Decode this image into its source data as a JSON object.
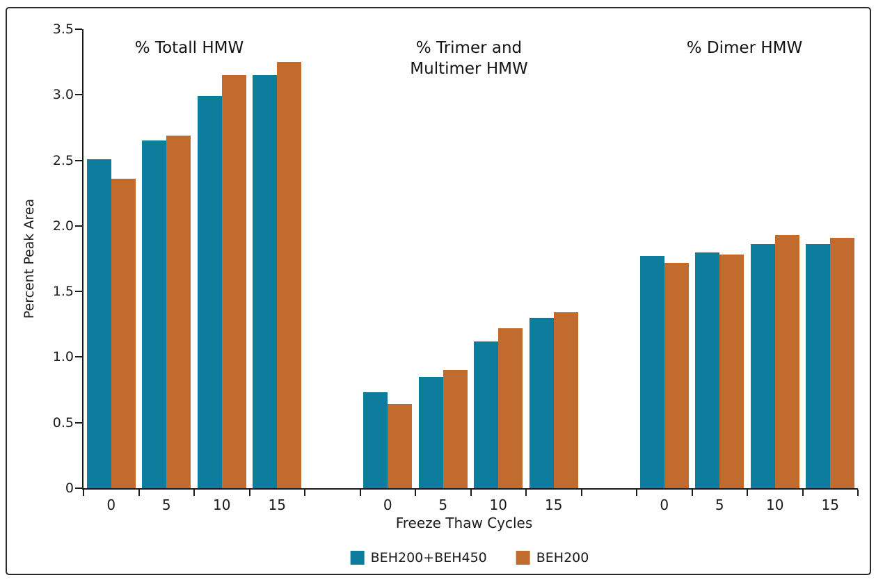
{
  "chart_data": {
    "type": "bar",
    "title": "",
    "group_titles": [
      "% Totall HMW",
      "% Trimer and\nMultimer HMW",
      "% Dimer HMW"
    ],
    "xlabel": "Freeze Thaw Cycles",
    "ylabel": "Percent Peak Area",
    "ylim": [
      0,
      3.5
    ],
    "ytick_labels": [
      "0",
      "0.5",
      "1.0",
      "1.5",
      "2.0",
      "2.5",
      "3.0",
      "3.5"
    ],
    "categories": [
      "0",
      "5",
      "10",
      "15"
    ],
    "grid": false,
    "legend_position": "bottom",
    "series": [
      {
        "name": "BEH200+BEH450",
        "color": "#0E7C9D",
        "groups": [
          [
            2.51,
            2.65,
            2.99,
            3.15
          ],
          [
            0.73,
            0.85,
            1.12,
            1.3
          ],
          [
            1.77,
            1.8,
            1.86,
            1.86
          ]
        ]
      },
      {
        "name": "BEH200",
        "color": "#C16C2E",
        "groups": [
          [
            2.36,
            2.69,
            3.15,
            3.25
          ],
          [
            0.64,
            0.9,
            1.22,
            1.34
          ],
          [
            1.72,
            1.78,
            1.93,
            1.91
          ]
        ]
      }
    ],
    "colors": {
      "axis": "#1b1b1b",
      "text": "#1b1b1b",
      "frame_border": "#2a2a2a",
      "background": "#ffffff"
    }
  }
}
